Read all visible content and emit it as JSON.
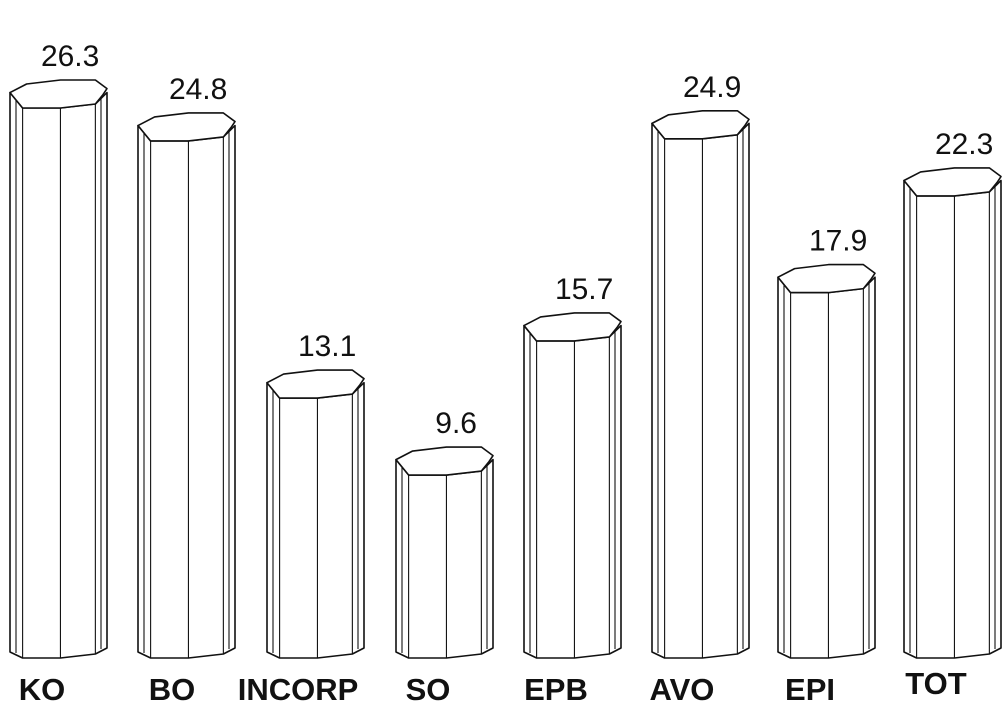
{
  "chart_data": {
    "type": "bar",
    "style": "3d-octagonal-columns",
    "categories": [
      "KO",
      "BO",
      "INCORP",
      "SO",
      "EPB",
      "AVO",
      "EPI",
      "TOT"
    ],
    "values": [
      26.3,
      24.8,
      13.1,
      9.6,
      15.7,
      24.9,
      17.9,
      22.3
    ],
    "value_labels": [
      "26.3",
      "24.8",
      "13.1",
      "9.6",
      "15.7",
      "24.9",
      "17.9",
      "22.3"
    ],
    "title": "",
    "xlabel": "",
    "ylabel": "",
    "ylim": [
      0,
      30
    ],
    "grid": false,
    "legend": "none",
    "colors": {
      "fill": "#ffffff",
      "stroke": "#111111"
    }
  }
}
